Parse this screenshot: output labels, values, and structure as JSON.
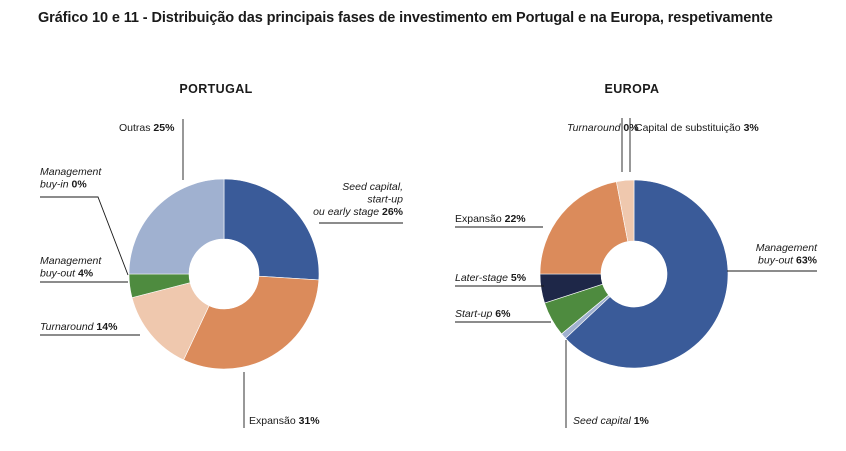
{
  "figure_title": "Gráfico 10 e 11 - Distribuição das principais fases de investimento em Portugal e na Europa, respetivamente",
  "chart_data": [
    {
      "type": "pie",
      "variant": "donut",
      "title": "PORTUGAL",
      "slices": [
        {
          "label": [
            "Seed capital,",
            "start-up",
            "ou early stage"
          ],
          "italic": true,
          "value": 26,
          "value_label": "26%",
          "color": "#3A5B99"
        },
        {
          "label": [
            "Expansão"
          ],
          "italic": false,
          "value": 31,
          "value_label": "31%",
          "color": "#DB8B5B"
        },
        {
          "label": [
            "Turnaround"
          ],
          "italic": true,
          "value": 14,
          "value_label": "14%",
          "color": "#EFC8AE"
        },
        {
          "label": [
            "Management",
            "buy-out"
          ],
          "italic": true,
          "value": 4,
          "value_label": "4%",
          "color": "#4E8B3F"
        },
        {
          "label": [
            "Management",
            "buy-in"
          ],
          "italic": true,
          "value": 0,
          "value_label": "0%",
          "color": "#9AAAC9"
        },
        {
          "label": [
            "Outras"
          ],
          "italic": false,
          "value": 25,
          "value_label": "25%",
          "color": "#A0B1D0"
        }
      ]
    },
    {
      "type": "pie",
      "variant": "donut",
      "title": "EUROPA",
      "slices": [
        {
          "label": [
            "Management",
            "buy-out"
          ],
          "italic": true,
          "value": 63,
          "value_label": "63%",
          "color": "#3A5B99"
        },
        {
          "label": [
            "Seed capital"
          ],
          "italic": true,
          "value": 1,
          "value_label": "1%",
          "color": "#A0B1D0"
        },
        {
          "label": [
            "Start-up"
          ],
          "italic": true,
          "value": 6,
          "value_label": "6%",
          "color": "#4E8B3F"
        },
        {
          "label": [
            "Later-stage"
          ],
          "italic": true,
          "value": 5,
          "value_label": "5%",
          "color": "#1E2748"
        },
        {
          "label": [
            "Expansão"
          ],
          "italic": false,
          "value": 22,
          "value_label": "22%",
          "color": "#DB8B5B"
        },
        {
          "label": [
            "Turnaround"
          ],
          "italic": true,
          "value": 0,
          "value_label": "0%",
          "color": "#EFC8AE"
        },
        {
          "label": [
            "Capital de substituição"
          ],
          "italic": false,
          "value": 3,
          "value_label": "3%",
          "color": "#EFC8AE"
        }
      ]
    }
  ]
}
